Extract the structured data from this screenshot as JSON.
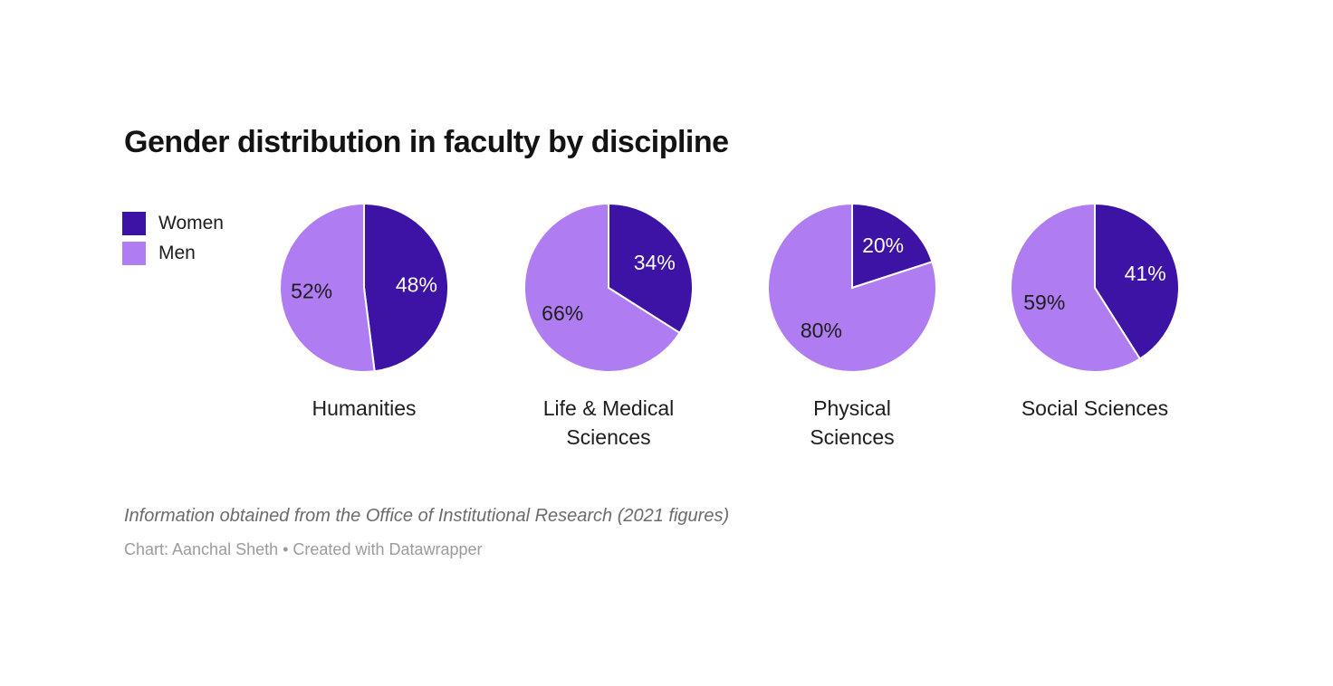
{
  "title": "Gender distribution in faculty by discipline",
  "legend": {
    "items": [
      {
        "label": "Women",
        "color": "#3d13a5"
      },
      {
        "label": "Men",
        "color": "#b07cf2"
      }
    ]
  },
  "chart_data": {
    "type": "pie",
    "title": "Gender distribution in faculty by discipline",
    "series_labels": [
      "Women",
      "Men"
    ],
    "colors": {
      "Women": "#3d13a5",
      "Men": "#b07cf2"
    },
    "unit": "%",
    "start_angle_deg": 0,
    "direction": "clockwise",
    "legend_position": "top-left",
    "pies": [
      {
        "category": "Humanities",
        "label_lines": [
          "Humanities"
        ],
        "values": {
          "Women": 48,
          "Men": 52
        }
      },
      {
        "category": "Life & Medical Sciences",
        "label_lines": [
          "Life & Medical",
          "Sciences"
        ],
        "values": {
          "Women": 34,
          "Men": 66
        }
      },
      {
        "category": "Physical Sciences",
        "label_lines": [
          "Physical",
          "Sciences"
        ],
        "values": {
          "Women": 20,
          "Men": 80
        }
      },
      {
        "category": "Social Sciences",
        "label_lines": [
          "Social Sciences"
        ],
        "values": {
          "Women": 41,
          "Men": 59
        }
      }
    ]
  },
  "footer": {
    "source_note": "Information obtained from the Office of Institutional Research (2021 figures)",
    "credit": "Chart: Aanchal Sheth • Created with Datawrapper"
  }
}
